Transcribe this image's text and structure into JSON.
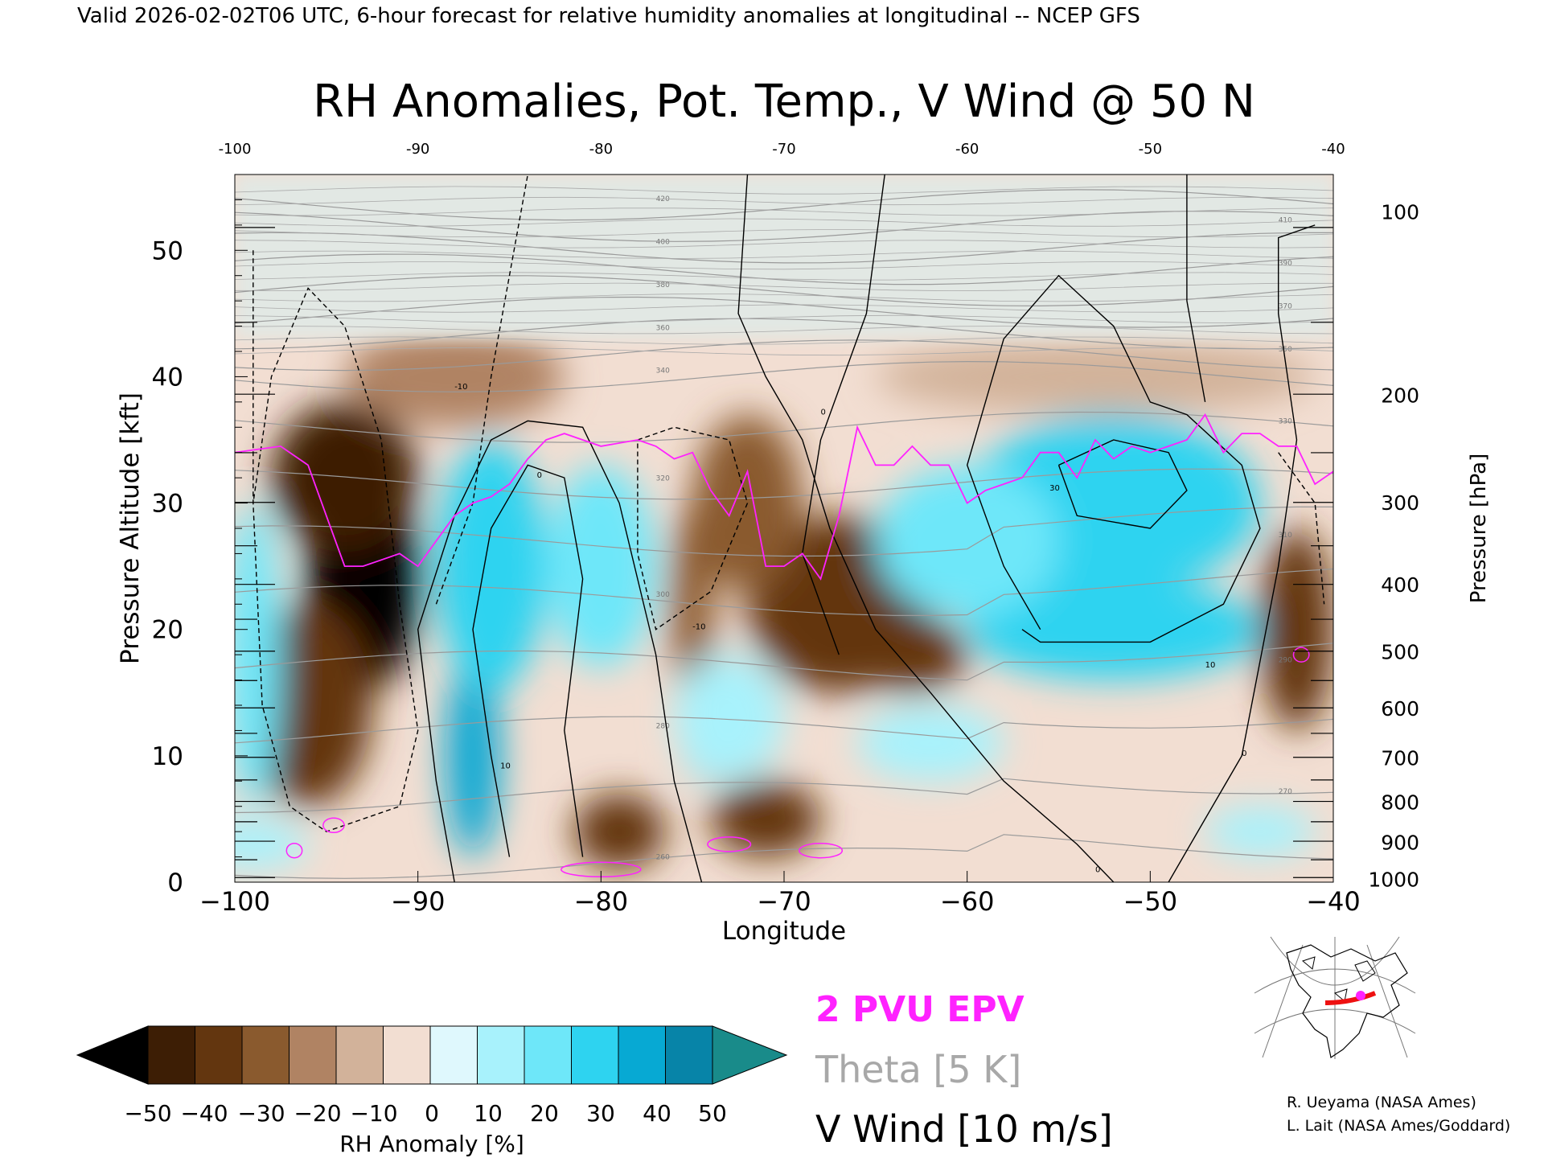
{
  "header": {
    "top_line": "Valid 2026-02-02T06 UTC, 6-hour forecast for relative humidity anomalies at longitudinal -- NCEP GFS"
  },
  "chart_data": {
    "type": "heatmap",
    "title": "RH Anomalies, Pot. Temp., V Wind @ 50 N",
    "xlabel": "Longitude",
    "ylabel": "Pressure Altitude [kft]",
    "y2label": "Pressure [hPa]",
    "xlim": [
      -100,
      -40
    ],
    "ylim": [
      0,
      56
    ],
    "x_ticks": [
      "-100",
      "-90",
      "-80",
      "-70",
      "-60",
      "-50",
      "-40"
    ],
    "x_ticks_top": [
      "-100",
      "-90",
      "-80",
      "-70",
      "-60",
      "-50",
      "-40"
    ],
    "y_ticks": [
      "0",
      "10",
      "20",
      "30",
      "40",
      "50"
    ],
    "y2_ticks": [
      {
        "label": "100",
        "kft": 53.1
      },
      {
        "label": "200",
        "kft": 38.6
      },
      {
        "label": "300",
        "kft": 30.1
      },
      {
        "label": "400",
        "kft": 23.6
      },
      {
        "label": "500",
        "kft": 18.3
      },
      {
        "label": "600",
        "kft": 13.8
      },
      {
        "label": "700",
        "kft": 9.9
      },
      {
        "label": "800",
        "kft": 6.4
      },
      {
        "label": "900",
        "kft": 3.2
      },
      {
        "label": "1000",
        "kft": 0.3
      }
    ],
    "theta_labels": [
      "260",
      "270",
      "280",
      "290",
      "300",
      "310",
      "320",
      "330",
      "340",
      "350",
      "360",
      "370",
      "380",
      "390",
      "400",
      "410",
      "420"
    ],
    "vwind_labels": [
      "0",
      "10",
      "-10",
      "30"
    ],
    "rh_anomaly_blobs": [
      {
        "lon": -93,
        "kft": 24,
        "value": -52,
        "rx": 3.2,
        "ry": 9
      },
      {
        "lon": -94,
        "kft": 32,
        "value": -45,
        "rx": 4,
        "ry": 6
      },
      {
        "lon": -96,
        "kft": 14,
        "value": -35,
        "rx": 3.5,
        "ry": 8
      },
      {
        "lon": -75,
        "kft": 22,
        "value": -30,
        "rx": 1.2,
        "ry": 8
      },
      {
        "lon": -79,
        "kft": 4,
        "value": -40,
        "rx": 2.5,
        "ry": 3
      },
      {
        "lon": -71,
        "kft": 5,
        "value": -38,
        "rx": 3,
        "ry": 3
      },
      {
        "lon": -67,
        "kft": 22,
        "value": -40,
        "rx": 5,
        "ry": 7
      },
      {
        "lon": -63,
        "kft": 18,
        "value": -35,
        "rx": 3,
        "ry": 3
      },
      {
        "lon": -72,
        "kft": 30,
        "value": -30,
        "rx": 3,
        "ry": 7
      },
      {
        "lon": -42,
        "kft": 20,
        "value": -38,
        "rx": 2,
        "ry": 8
      },
      {
        "lon": -88,
        "kft": 40,
        "value": -15,
        "rx": 6,
        "ry": 4
      },
      {
        "lon": -53,
        "kft": 40,
        "value": -8,
        "rx": 12,
        "ry": 3
      },
      {
        "lon": -87,
        "kft": 10,
        "value": 48,
        "rx": 1.5,
        "ry": 8
      },
      {
        "lon": -86,
        "kft": 25,
        "value": 30,
        "rx": 3,
        "ry": 10
      },
      {
        "lon": -80,
        "kft": 25,
        "value": 25,
        "rx": 3,
        "ry": 8
      },
      {
        "lon": -74,
        "kft": 11,
        "value": 38,
        "rx": 1.5,
        "ry": 3
      },
      {
        "lon": -73,
        "kft": 13,
        "value": 15,
        "rx": 3,
        "ry": 5
      },
      {
        "lon": -52,
        "kft": 20,
        "value": 35,
        "rx": 8,
        "ry": 4
      },
      {
        "lon": -52,
        "kft": 30,
        "value": 30,
        "rx": 8,
        "ry": 7
      },
      {
        "lon": -60,
        "kft": 27,
        "value": 22,
        "rx": 5,
        "ry": 6
      },
      {
        "lon": -62,
        "kft": 11,
        "value": 18,
        "rx": 4,
        "ry": 3
      },
      {
        "lon": -44,
        "kft": 4,
        "value": 18,
        "rx": 3,
        "ry": 2
      },
      {
        "lon": -99,
        "kft": 18,
        "value": 22,
        "rx": 1.5,
        "ry": 12
      },
      {
        "lon": -99,
        "kft": 3,
        "value": 15,
        "rx": 3,
        "ry": 2
      }
    ],
    "epv_2pvu": {
      "lon": [
        -100,
        -97.5,
        -96,
        -95,
        -94,
        -93,
        -92,
        -91,
        -90,
        -89,
        -88,
        -87,
        -86,
        -85,
        -84,
        -83,
        -82,
        -80,
        -78,
        -77,
        -76,
        -75,
        -74,
        -73,
        -72,
        -71,
        -70,
        -69,
        -68,
        -67,
        -66,
        -65,
        -64,
        -63,
        -62,
        -61,
        -60,
        -59,
        -58,
        -57,
        -56,
        -55,
        -54,
        -53,
        -52,
        -51,
        -50,
        -49,
        -48,
        -47,
        -46,
        -45,
        -44,
        -43,
        -42,
        -41,
        -40
      ],
      "kft": [
        34,
        34.5,
        33,
        29,
        25,
        25,
        25.5,
        26,
        25,
        27,
        29,
        30,
        30.5,
        31.5,
        33.5,
        35,
        35.5,
        34.5,
        35,
        34.5,
        33.5,
        34,
        31,
        29,
        32.5,
        25,
        25,
        26,
        24,
        29,
        36,
        33,
        33,
        34.5,
        33,
        33,
        30,
        31,
        31.5,
        32,
        34,
        34,
        32,
        35,
        33.5,
        34.5,
        34,
        34.5,
        35,
        37,
        34,
        35.5,
        35.5,
        34.5,
        34.5,
        31.5,
        32.5
      ]
    },
    "legend": [
      "2 PVU EPV",
      "Theta [5 K]",
      "V Wind [10 m/s]"
    ],
    "colorbar": {
      "label": "RH Anomaly [%]",
      "ticks": [
        "-50",
        "-40",
        "-30",
        "-20",
        "-10",
        "0",
        "10",
        "20",
        "30",
        "40",
        "50"
      ],
      "colors": [
        "#3d1e05",
        "#63360f",
        "#8a5a2e",
        "#b08363",
        "#d2b29a",
        "#f2ded2",
        "#dff8fd",
        "#a8f2fc",
        "#6ee7f9",
        "#2ed3f0",
        "#07a9d3",
        "#0784a8"
      ],
      "under_color": "#000000",
      "over_color": "#198b8a"
    }
  },
  "credits": {
    "line1": "R. Ueyama (NASA Ames)",
    "line2": "L. Lait (NASA Ames/Goddard)"
  },
  "colors": {
    "epv": "#ff22ff",
    "theta": "#9a9a9a",
    "vwind": "#000000"
  },
  "icons": {
    "inset_map": "locator-map-icon"
  }
}
